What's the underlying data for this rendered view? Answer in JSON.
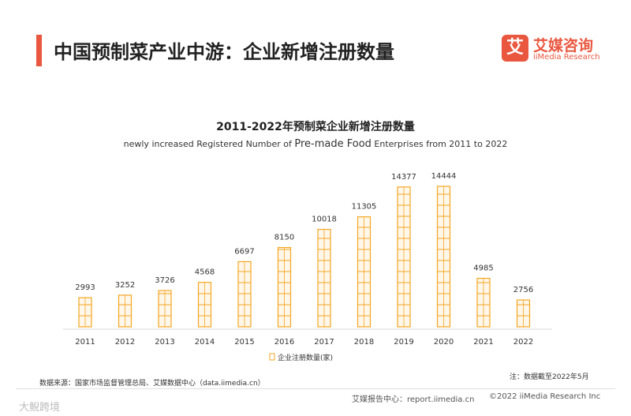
{
  "header": {
    "title": "中国预制菜产业中游：企业新增注册数量"
  },
  "logo": {
    "badge": "艾",
    "cn": "艾媒咨询",
    "en": "iiMedia Research"
  },
  "chart_data": {
    "type": "bar",
    "title": "2011-2022年预制菜企业新增注册数量",
    "subtitle_parts": [
      "newly increased Registered Number of ",
      "Pre-made Food",
      " Enterprises from 2011 to 2022"
    ],
    "categories": [
      "2011",
      "2012",
      "2013",
      "2014",
      "2015",
      "2016",
      "2017",
      "2018",
      "2019",
      "2020",
      "2021",
      "2022"
    ],
    "values": [
      2993,
      3252,
      3726,
      4568,
      6697,
      8150,
      10018,
      11305,
      14377,
      14444,
      4985,
      2756
    ],
    "legend": "企业注册数量(家)",
    "xlabel": "",
    "ylabel": "",
    "ylim": [
      0,
      14444
    ],
    "grid": false,
    "bar_color": "#f5a623"
  },
  "footer": {
    "source": "数据来源：国家市场监督管理总局、艾媒数据中心（data.iimedia.cn）",
    "note": "注：数据截至2022年5月",
    "left": "艾媒报告中心：report.iimedia.cn",
    "right": "©2022  iiMedia Research  Inc",
    "watermark": "大鲵跨境"
  }
}
